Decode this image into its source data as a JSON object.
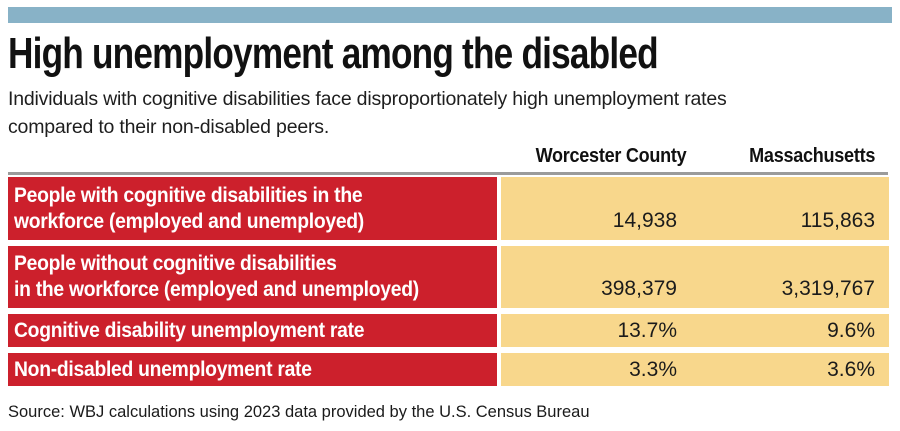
{
  "colors": {
    "top_bar_blue": "#88B2C7",
    "accent_red": "#CC202C",
    "accent_yellow": "#F8D78C",
    "rule_gray": "#9B9B9B",
    "text_dark": "#1A1A1A"
  },
  "header": {
    "title": "High unemployment among the disabled",
    "subtitle_lines": [
      "Individuals with cognitive disabilities face disproportionately high unemployment rates",
      "compared to their non-disabled peers."
    ]
  },
  "table": {
    "columns": [
      "Worcester County",
      "Massachusetts"
    ],
    "rows": [
      {
        "label_lines": [
          "People with cognitive disabilities in the",
          "workforce (employed and unemployed)"
        ],
        "values": [
          "14,938",
          "115,863"
        ]
      },
      {
        "label_lines": [
          "People without cognitive disabilities",
          "in the workforce (employed and unemployed)"
        ],
        "values": [
          "398,379",
          "3,319,767"
        ]
      },
      {
        "label_lines": [
          "Cognitive disability unemployment rate",
          ""
        ],
        "values": [
          "13.7%",
          "9.6%"
        ]
      },
      {
        "label_lines": [
          "Non-disabled unemployment rate",
          ""
        ],
        "values": [
          "3.3%",
          "3.6%"
        ]
      }
    ]
  },
  "source": "Source: WBJ calculations using 2023 data provided by the U.S. Census Bureau",
  "chart_data": {
    "type": "table",
    "title": "High unemployment among the disabled",
    "subtitle": "Individuals with cognitive disabilities face disproportionately high unemployment rates compared to their non-disabled peers.",
    "columns": [
      "Worcester County",
      "Massachusetts"
    ],
    "rows": [
      {
        "label": "People with cognitive disabilities in the workforce (employed and unemployed)",
        "worcester_county": 14938,
        "massachusetts": 115863
      },
      {
        "label": "People without cognitive disabilities in the workforce (employed and unemployed)",
        "worcester_county": 398379,
        "massachusetts": 3319767
      },
      {
        "label": "Cognitive disability unemployment rate",
        "worcester_county": "13.7%",
        "massachusetts": "9.6%"
      },
      {
        "label": "Non-disabled unemployment rate",
        "worcester_county": "3.3%",
        "massachusetts": "3.6%"
      }
    ],
    "source": "Source: WBJ calculations using 2023 data provided by the U.S. Census Bureau"
  }
}
